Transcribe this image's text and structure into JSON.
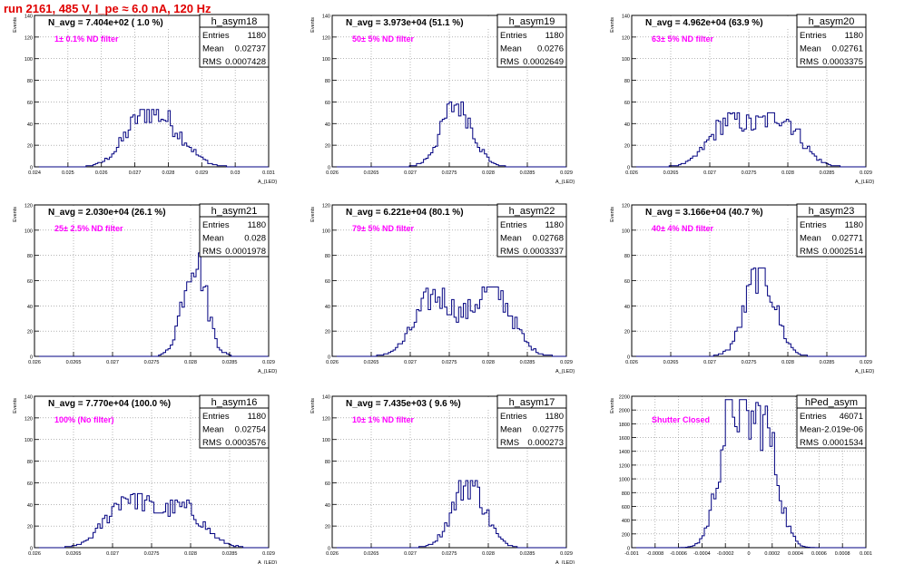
{
  "page": {
    "title": "run 2161,   485 V, I_pe ≈ 6.0 nA, 120 Hz",
    "colors": {
      "title": "#e00000",
      "histogram": "#000080",
      "annotation": "#ff00ff",
      "grid": "#8a8a8a"
    }
  },
  "chart_data": [
    {
      "type": "histogram",
      "name": "h_asym18",
      "stats": {
        "Entries": "1180",
        "Mean": "0.02737",
        "RMS": "0.0007428"
      },
      "n_avg_label": "N_avg = 7.404e+02 ( 1.0 %)",
      "annotation": "1± 0.1% ND filter",
      "ylabel": "Events",
      "xlabel": "A_{LED}",
      "xlim": [
        0.024,
        0.031
      ],
      "ylim": [
        0,
        140
      ],
      "xticks": [
        "0.024",
        "0.025",
        "0.026",
        "0.027",
        "0.028",
        "0.029",
        "0.03",
        "0.031"
      ],
      "xtickvals": [
        0.024,
        0.025,
        0.026,
        0.027,
        0.028,
        0.029,
        0.03,
        0.031
      ],
      "yticks": [
        0,
        20,
        40,
        60,
        80,
        100,
        120,
        140
      ],
      "mean": 0.02737,
      "rms": 0.0007428,
      "peak": 53,
      "modes": [
        [
          0.0272,
          1.0
        ],
        [
          0.0281,
          0.7
        ]
      ]
    },
    {
      "type": "histogram",
      "name": "h_asym19",
      "stats": {
        "Entries": "1180",
        "Mean": "0.0276",
        "RMS": "0.0002649"
      },
      "n_avg_label": "N_avg = 3.973e+04 (51.1 %)",
      "annotation": "50± 5% ND filter",
      "ylabel": "Events",
      "xlabel": "A_{LED}",
      "xlim": [
        0.026,
        0.029
      ],
      "ylim": [
        0,
        140
      ],
      "xticks": [
        "0.026",
        "0.0265",
        "0.027",
        "0.0275",
        "0.028",
        "0.0285",
        "0.029"
      ],
      "xtickvals": [
        0.026,
        0.0265,
        0.027,
        0.0275,
        0.028,
        0.0285,
        0.029
      ],
      "yticks": [
        0,
        20,
        40,
        60,
        80,
        100,
        120,
        140
      ],
      "mean": 0.0276,
      "rms": 0.0002649,
      "peak": 60,
      "modes": [
        [
          0.0276,
          1.0
        ]
      ]
    },
    {
      "type": "histogram",
      "name": "h_asym20",
      "stats": {
        "Entries": "1180",
        "Mean": "0.02761",
        "RMS": "0.0003375"
      },
      "n_avg_label": "N_avg = 4.962e+04 (63.9 %)",
      "annotation": "63± 5% ND filter",
      "ylabel": "Events",
      "xlabel": "A_{LED}",
      "xlim": [
        0.026,
        0.029
      ],
      "ylim": [
        0,
        140
      ],
      "xticks": [
        "0.026",
        "0.0265",
        "0.027",
        "0.0275",
        "0.028",
        "0.0285",
        "0.029"
      ],
      "xtickvals": [
        0.026,
        0.0265,
        0.027,
        0.0275,
        0.028,
        0.0285,
        0.029
      ],
      "yticks": [
        0,
        20,
        40,
        60,
        80,
        100,
        120,
        140
      ],
      "mean": 0.02761,
      "rms": 0.0003375,
      "peak": 50,
      "modes": [
        [
          0.02725,
          0.9
        ],
        [
          0.0279,
          1.0
        ]
      ]
    },
    {
      "type": "histogram",
      "name": "h_asym21",
      "stats": {
        "Entries": "1180",
        "Mean": "0.028",
        "RMS": "0.0001978"
      },
      "n_avg_label": "N_avg = 2.030e+04 (26.1 %)",
      "annotation": "25± 2.5% ND filter",
      "ylabel": "Events",
      "xlabel": "A_{LED}",
      "xlim": [
        0.026,
        0.029
      ],
      "ylim": [
        0,
        120
      ],
      "xticks": [
        "0.026",
        "0.0265",
        "0.027",
        "0.0275",
        "0.028",
        "0.0285",
        "0.029"
      ],
      "xtickvals": [
        0.026,
        0.0265,
        0.027,
        0.0275,
        0.028,
        0.0285,
        0.029
      ],
      "yticks": [
        0,
        20,
        40,
        60,
        80,
        100,
        120
      ],
      "mean": 0.028,
      "rms": 0.0001978,
      "peak": 82,
      "modes": [
        [
          0.02805,
          1.0
        ]
      ]
    },
    {
      "type": "histogram",
      "name": "h_asym22",
      "stats": {
        "Entries": "1180",
        "Mean": "0.02768",
        "RMS": "0.0003337"
      },
      "n_avg_label": "N_avg = 6.221e+04 (80.1 %)",
      "annotation": "79± 5% ND filter",
      "ylabel": "Events",
      "xlabel": "A_{LED}",
      "xlim": [
        0.026,
        0.029
      ],
      "ylim": [
        0,
        120
      ],
      "xticks": [
        "0.026",
        "0.0265",
        "0.027",
        "0.0275",
        "0.028",
        "0.0285",
        "0.029"
      ],
      "xtickvals": [
        0.026,
        0.0265,
        0.027,
        0.0275,
        0.028,
        0.0285,
        0.029
      ],
      "yticks": [
        0,
        20,
        40,
        60,
        80,
        100,
        120
      ],
      "mean": 0.02768,
      "rms": 0.0003337,
      "peak": 55,
      "modes": [
        [
          0.02732,
          0.9
        ],
        [
          0.02805,
          1.0
        ]
      ]
    },
    {
      "type": "histogram",
      "name": "h_asym23",
      "stats": {
        "Entries": "1180",
        "Mean": "0.02771",
        "RMS": "0.0002514"
      },
      "n_avg_label": "N_avg = 3.166e+04 (40.7 %)",
      "annotation": "40± 4% ND filter",
      "ylabel": "Events",
      "xlabel": "A_{LED}",
      "xlim": [
        0.026,
        0.029
      ],
      "ylim": [
        0,
        120
      ],
      "xticks": [
        "0.026",
        "0.0265",
        "0.027",
        "0.0275",
        "0.028",
        "0.0285",
        "0.029"
      ],
      "xtickvals": [
        0.026,
        0.0265,
        0.027,
        0.0275,
        0.028,
        0.0285,
        0.029
      ],
      "yticks": [
        0,
        20,
        40,
        60,
        80,
        100,
        120
      ],
      "mean": 0.02771,
      "rms": 0.0002514,
      "peak": 70,
      "modes": [
        [
          0.02765,
          1.0
        ]
      ]
    },
    {
      "type": "histogram",
      "name": "h_asym16",
      "stats": {
        "Entries": "1180",
        "Mean": "0.02754",
        "RMS": "0.0003576"
      },
      "n_avg_label": "N_avg = 7.770e+04 (100.0 %)",
      "annotation": "100% (No filter)",
      "ylabel": "Events",
      "xlabel": "A_{LED}",
      "xlim": [
        0.026,
        0.029
      ],
      "ylim": [
        0,
        140
      ],
      "xticks": [
        "0.026",
        "0.0265",
        "0.027",
        "0.0275",
        "0.028",
        "0.0285",
        "0.029"
      ],
      "xtickvals": [
        0.026,
        0.0265,
        0.027,
        0.0275,
        0.028,
        0.0285,
        0.029
      ],
      "yticks": [
        0,
        20,
        40,
        60,
        80,
        100,
        120,
        140
      ],
      "mean": 0.02754,
      "rms": 0.0003576,
      "peak": 50,
      "modes": [
        [
          0.0272,
          1.0
        ],
        [
          0.0279,
          0.75
        ]
      ]
    },
    {
      "type": "histogram",
      "name": "h_asym17",
      "stats": {
        "Entries": "1180",
        "Mean": "0.02775",
        "RMS": "0.000273"
      },
      "n_avg_label": "N_avg = 7.435e+03 ( 9.6 %)",
      "annotation": "10± 1% ND filter",
      "ylabel": "Events",
      "xlabel": "A_{LED}",
      "xlim": [
        0.026,
        0.029
      ],
      "ylim": [
        0,
        140
      ],
      "xticks": [
        "0.026",
        "0.0265",
        "0.027",
        "0.0275",
        "0.028",
        "0.0285",
        "0.029"
      ],
      "xtickvals": [
        0.026,
        0.0265,
        0.027,
        0.0275,
        0.028,
        0.0285,
        0.029
      ],
      "yticks": [
        0,
        20,
        40,
        60,
        80,
        100,
        120,
        140
      ],
      "mean": 0.02775,
      "rms": 0.000273,
      "peak": 62,
      "modes": [
        [
          0.02775,
          1.0
        ]
      ]
    },
    {
      "type": "histogram",
      "name": "hPed_asym",
      "stats": {
        "Entries": "46071",
        "Mean": "-2.019e-06",
        "RMS": "0.0001534"
      },
      "n_avg_label": "",
      "annotation": "Shutter Closed",
      "ylabel": "Events",
      "xlabel": "",
      "xlim": [
        -0.001,
        0.001
      ],
      "ylim": [
        0,
        2200
      ],
      "xticks": [
        "-0.001",
        "-0.0008",
        "-0.0006",
        "-0.0004",
        "-0.0002",
        "0",
        "0.0002",
        "0.0004",
        "0.0006",
        "0.0008",
        "0.001"
      ],
      "xtickvals": [
        -0.001,
        -0.0008,
        -0.0006,
        -0.0004,
        -0.0002,
        0,
        0.0002,
        0.0004,
        0.0006,
        0.0008,
        0.001
      ],
      "yticks": [
        0,
        200,
        400,
        600,
        800,
        1000,
        1200,
        1400,
        1600,
        1800,
        2000,
        2200
      ],
      "mean": -2.019e-06,
      "rms": 0.0001534,
      "peak": 2150,
      "modes": [
        [
          -0.00014,
          1.0
        ],
        [
          0.00013,
          0.88
        ]
      ]
    }
  ]
}
